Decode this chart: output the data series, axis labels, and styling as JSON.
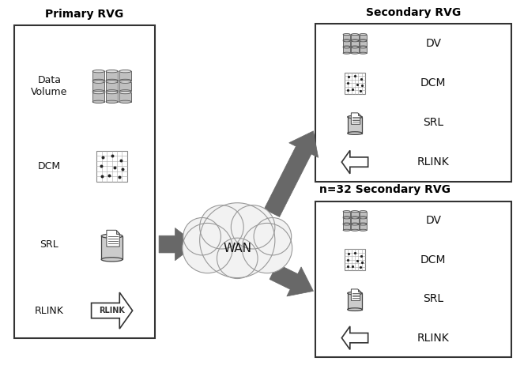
{
  "bg_color": "#ffffff",
  "primary_label": "Primary RVG",
  "secondary1_label": "Secondary RVG",
  "secondary2_label": "n=32 Secondary RVG",
  "wan_label": "WAN",
  "primary_items": [
    "Data\nVolume",
    "DCM",
    "SRL",
    "RLINK"
  ],
  "secondary_items": [
    "DV",
    "DCM",
    "SRL",
    "RLINK"
  ],
  "arrow_color": "#686868",
  "box_edge": "#333333",
  "cloud_fill": "#f0f0f0",
  "cloud_edge": "#888888"
}
